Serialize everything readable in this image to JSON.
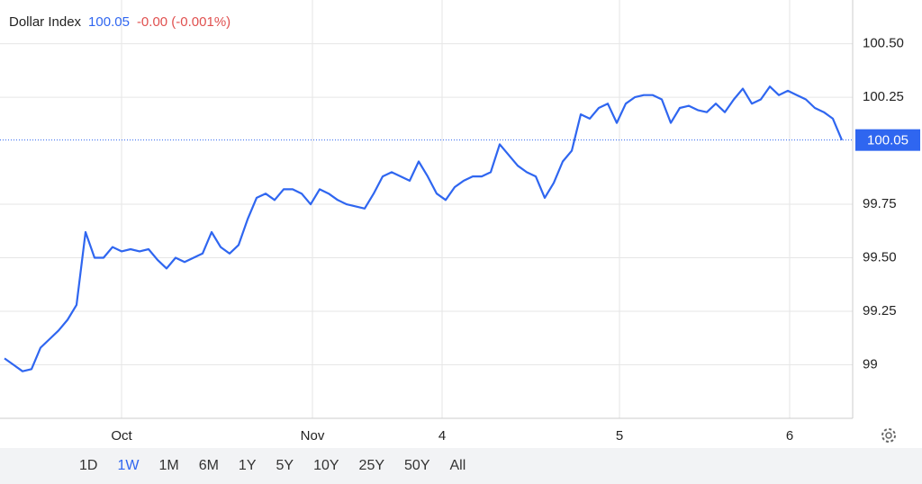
{
  "chart_data": {
    "type": "line",
    "series": [
      {
        "name": "Dollar Index",
        "color": "#2f66f0",
        "values": [
          99.03,
          99.0,
          98.97,
          98.98,
          99.08,
          99.12,
          99.16,
          99.21,
          99.28,
          99.62,
          99.5,
          99.5,
          99.55,
          99.53,
          99.54,
          99.53,
          99.54,
          99.49,
          99.45,
          99.5,
          99.48,
          99.5,
          99.52,
          99.62,
          99.55,
          99.52,
          99.56,
          99.68,
          99.78,
          99.8,
          99.77,
          99.82,
          99.82,
          99.8,
          99.75,
          99.82,
          99.8,
          99.77,
          99.75,
          99.74,
          99.73,
          99.8,
          99.88,
          99.9,
          99.88,
          99.86,
          99.95,
          99.88,
          99.8,
          99.77,
          99.83,
          99.86,
          99.88,
          99.88,
          99.9,
          100.03,
          99.98,
          99.93,
          99.9,
          99.88,
          99.78,
          99.85,
          99.95,
          100.0,
          100.17,
          100.15,
          100.2,
          100.22,
          100.13,
          100.22,
          100.25,
          100.26,
          100.26,
          100.24,
          100.13,
          100.2,
          100.21,
          100.19,
          100.18,
          100.22,
          100.18,
          100.24,
          100.29,
          100.22,
          100.24,
          100.3,
          100.26,
          100.28,
          100.26,
          100.24,
          100.2,
          100.18,
          100.15,
          100.05
        ]
      }
    ],
    "last_value": 100.05,
    "change": "-0.00 (-0.001%)",
    "xlim": [
      0,
      93
    ],
    "xticks": [
      {
        "value": 13,
        "label": "Oct"
      },
      {
        "value": 34.2,
        "label": "Nov"
      },
      {
        "value": 48.6,
        "label": "4"
      },
      {
        "value": 68.3,
        "label": "5"
      },
      {
        "value": 87.2,
        "label": "6"
      }
    ],
    "ylim": [
      98.75,
      100.7
    ],
    "yticks": [
      99,
      99.25,
      {
        "value": 99.5,
        "label": "99.50"
      },
      99.75,
      100.25,
      {
        "value": 100.5,
        "label": "100.50"
      }
    ],
    "grid": true
  },
  "ranges": {
    "items": [
      "1D",
      "1W",
      "1M",
      "6M",
      "1Y",
      "5Y",
      "10Y",
      "25Y",
      "50Y",
      "All"
    ],
    "active_index": 1
  }
}
